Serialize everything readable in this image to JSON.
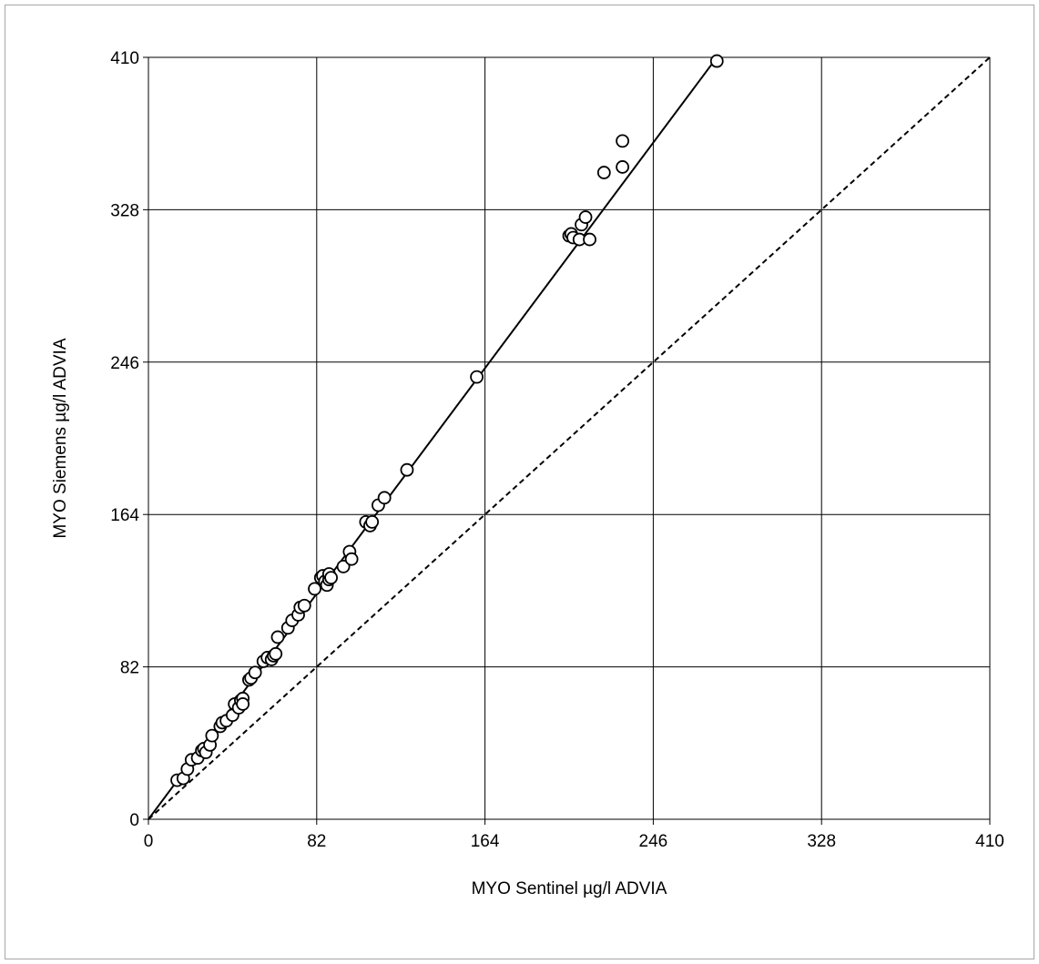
{
  "chart_data": {
    "type": "scatter",
    "title": "",
    "xlabel": "MYO Sentinel µg/l ADVIA",
    "ylabel": "MYO Siemens µg/l ADVIA",
    "xlim": [
      0,
      410
    ],
    "ylim": [
      0,
      410
    ],
    "x_ticks": [
      "0",
      "82",
      "164",
      "246",
      "328",
      "410"
    ],
    "y_ticks": [
      "0",
      "82",
      "164",
      "246",
      "328",
      "410"
    ],
    "grid": true,
    "legend": "none",
    "identity_line": {
      "x": [
        0,
        410
      ],
      "y": [
        0,
        410
      ],
      "style": "dashed"
    },
    "regression_line": {
      "x": [
        0,
        277
      ],
      "y": [
        0,
        410
      ],
      "style": "solid"
    },
    "series": [
      {
        "x": [
          14,
          17,
          19,
          21,
          24,
          26,
          27,
          28,
          30,
          31,
          35,
          36,
          38,
          41,
          42,
          44,
          45,
          46,
          46,
          49,
          50,
          52,
          56,
          58,
          60,
          61,
          62,
          63,
          68,
          70,
          73,
          74,
          76,
          81,
          84,
          85,
          86,
          87,
          88,
          88,
          89,
          95,
          98,
          99,
          106,
          108,
          109,
          112,
          115,
          126,
          160,
          205,
          206,
          207,
          210,
          211,
          213,
          215,
          222,
          231,
          231,
          277
        ],
        "y": [
          21,
          22,
          27,
          32,
          33,
          37,
          38,
          36,
          40,
          45,
          50,
          52,
          53,
          56,
          62,
          60,
          64,
          65,
          62,
          75,
          76,
          79,
          85,
          87,
          86,
          88,
          89,
          98,
          103,
          107,
          110,
          114,
          115,
          124,
          130,
          131,
          128,
          126,
          129,
          132,
          130,
          136,
          144,
          140,
          160,
          158,
          160,
          169,
          173,
          188,
          238,
          314,
          315,
          313,
          312,
          320,
          324,
          312,
          348,
          351,
          365,
          408
        ]
      }
    ]
  }
}
